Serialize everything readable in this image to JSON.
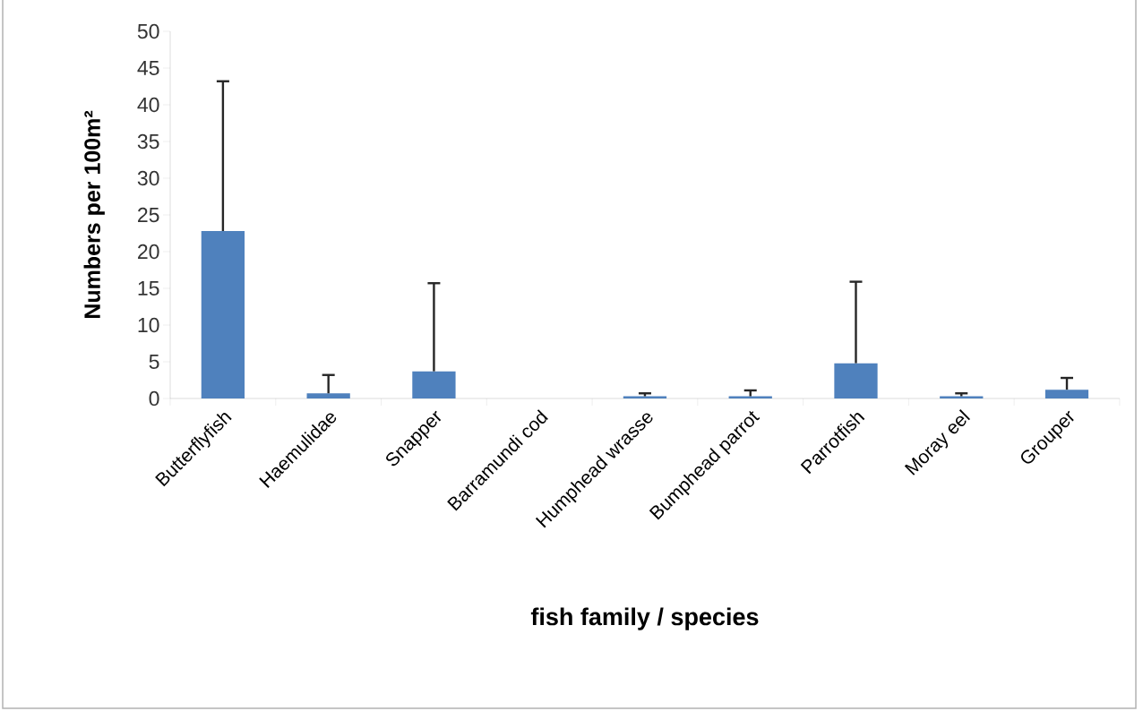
{
  "chart_data": {
    "type": "bar",
    "xlabel": "fish family / species",
    "ylabel": "Numbers per 100m²",
    "categories": [
      "Butterflyfish",
      "Haemulidae",
      "Snapper",
      "Barramundi cod",
      "Humphead wrasse",
      "Bumphead parrot",
      "Parrotfish",
      "Moray eel",
      "Grouper"
    ],
    "values": [
      22.8,
      0.7,
      3.7,
      0,
      0.3,
      0.3,
      4.8,
      0.3,
      1.2
    ],
    "errors": [
      [
        22.8,
        43.2
      ],
      [
        0.7,
        3.2
      ],
      [
        3.7,
        15.7
      ],
      null,
      [
        0.3,
        0.7
      ],
      [
        0.3,
        1.1
      ],
      [
        4.8,
        15.9
      ],
      [
        0.3,
        0.7
      ],
      [
        1.2,
        2.8
      ]
    ],
    "color": "#4f81bd",
    "ylim": [
      0,
      50
    ],
    "yticks": [
      0,
      5,
      10,
      15,
      20,
      25,
      30,
      35,
      40,
      45,
      50
    ],
    "grid": false
  }
}
